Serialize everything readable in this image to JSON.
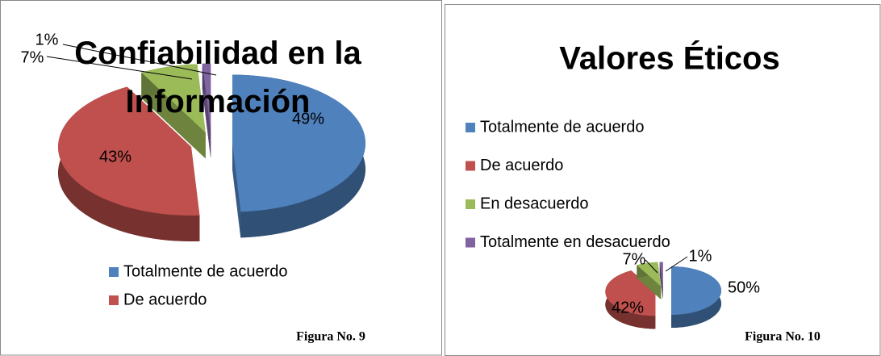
{
  "chart_data": [
    {
      "type": "pie",
      "title": "Confiabilidad en la Información",
      "categories": [
        "Totalmente de acuerdo",
        "De acuerdo",
        null,
        null
      ],
      "values": [
        49,
        43,
        7,
        1
      ],
      "value_labels": [
        "49%",
        "43%",
        "7%",
        "1%"
      ],
      "colors": [
        "#4f81bd",
        "#c0504d",
        "#9bbb59",
        "#8064a2"
      ],
      "caption": "Figura No. 9"
    },
    {
      "type": "pie",
      "title": "Valores Éticos",
      "categories": [
        "Totalmente de acuerdo",
        "De acuerdo",
        "En desacuerdo",
        "Totalmente en desacuerdo"
      ],
      "values": [
        50,
        42,
        7,
        1
      ],
      "value_labels": [
        "50%",
        "42%",
        "7%",
        "1%"
      ],
      "colors": [
        "#4f81bd",
        "#c0504d",
        "#9bbb59",
        "#8064a2"
      ],
      "caption": "Figura No. 10"
    }
  ]
}
